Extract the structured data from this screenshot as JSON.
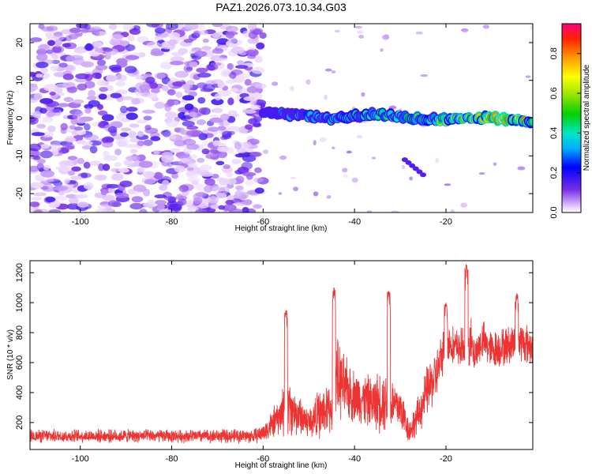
{
  "chart_data": [
    {
      "type": "heatmap",
      "title": "PAZ1.2026.073.10.34.G03",
      "xlabel": "Height of straight line (km)",
      "ylabel": "Frequency (Hz)",
      "xlim": [
        -111,
        -1
      ],
      "ylim": [
        -25,
        25
      ],
      "xticks": [
        -100,
        -80,
        -60,
        -40,
        -20
      ],
      "yticks": [
        -20,
        -10,
        0,
        10,
        20
      ],
      "colorbar": {
        "label": "Normalized spectral amplitude",
        "range": [
          0,
          0.95
        ],
        "ticks": [
          0.0,
          0.2,
          0.4,
          0.6,
          0.8
        ],
        "tick_labels": [
          "0.0",
          "0.2",
          "0.4",
          "0.6",
          "0.8"
        ]
      },
      "regions": {
        "noise": {
          "x_range": [
            -111,
            -60
          ],
          "freq_range": [
            -25,
            25
          ],
          "amplitude_range": [
            0.02,
            0.18
          ]
        },
        "signal_track": {
          "x": [
            -60,
            -55,
            -50,
            -45,
            -40,
            -35,
            -30,
            -25,
            -20,
            -15,
            -10,
            -5,
            -1
          ],
          "freq": [
            1.5,
            1,
            0.5,
            -0.5,
            0.5,
            1,
            0.5,
            0,
            -0.5,
            0,
            0,
            -0.5,
            -1
          ],
          "amplitude": [
            0.25,
            0.35,
            0.35,
            0.4,
            0.5,
            0.55,
            0.5,
            0.6,
            0.65,
            0.75,
            0.9,
            0.9,
            0.85
          ]
        },
        "scattered_blobs": {
          "x_range": [
            -60,
            -1
          ],
          "amplitude_range": [
            0.02,
            0.1
          ]
        },
        "secondary_blob": {
          "x_range": [
            -29,
            -25
          ],
          "freq_range": [
            -15,
            -11
          ],
          "amplitude": 0.15
        }
      }
    },
    {
      "type": "line",
      "xlabel": "Height of straight line (km)",
      "ylabel": "SNR (10 * v/v)",
      "xlim": [
        -111,
        -1
      ],
      "ylim": [
        20,
        1280
      ],
      "xticks": [
        -100,
        -80,
        -60,
        -40,
        -20
      ],
      "yticks": [
        200,
        400,
        600,
        800,
        1000,
        1200
      ],
      "series": [
        {
          "name": "SNR",
          "color": "#ee3333",
          "envelope_x": [
            -111,
            -100,
            -80,
            -62,
            -60,
            -56,
            -55,
            -54,
            -52,
            -50,
            -48,
            -45,
            -44,
            -42,
            -40,
            -36,
            -34,
            -32,
            -30,
            -28,
            -26,
            -24,
            -22,
            -20,
            -18,
            -16,
            -15,
            -14,
            -12,
            -10,
            -8,
            -6,
            -4,
            -1
          ],
          "envelope_center": [
            110,
            110,
            110,
            110,
            130,
            250,
            350,
            280,
            250,
            200,
            250,
            300,
            500,
            420,
            380,
            330,
            350,
            330,
            300,
            140,
            250,
            420,
            520,
            750,
            700,
            700,
            800,
            650,
            750,
            680,
            700,
            720,
            750,
            700
          ],
          "envelope_amplitude": [
            50,
            50,
            50,
            55,
            70,
            150,
            300,
            200,
            150,
            120,
            180,
            200,
            300,
            250,
            200,
            200,
            250,
            200,
            180,
            90,
            150,
            200,
            200,
            150,
            150,
            150,
            250,
            150,
            150,
            150,
            150,
            150,
            170,
            150
          ],
          "peaks": [
            {
              "x": -55,
              "y": 950
            },
            {
              "x": -44.5,
              "y": 1100
            },
            {
              "x": -32.5,
              "y": 1080
            },
            {
              "x": -20,
              "y": 1000
            },
            {
              "x": -15.5,
              "y": 1260
            },
            {
              "x": -4.5,
              "y": 1060
            }
          ]
        }
      ]
    }
  ]
}
